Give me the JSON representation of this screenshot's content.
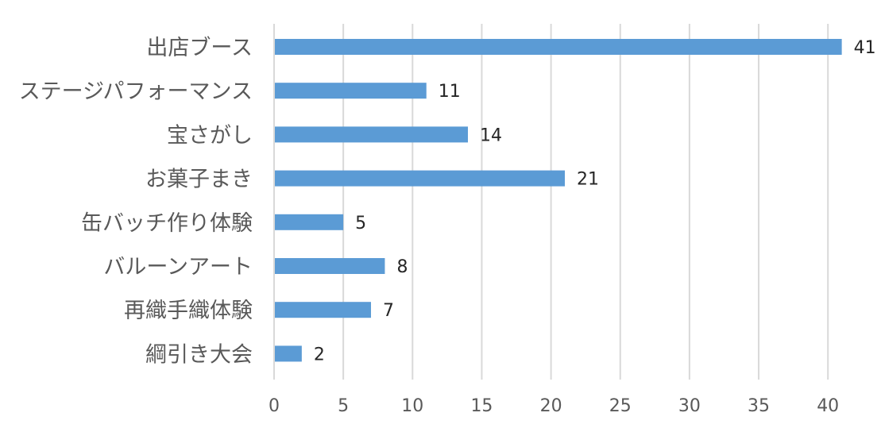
{
  "chart_data": {
    "type": "bar",
    "orientation": "horizontal",
    "categories": [
      "出店ブース",
      "ステージパフォーマンス",
      "宝さがし",
      "お菓子まき",
      "缶バッチ作り体験",
      "バルーンアート",
      "再織手織体験",
      "綱引き大会"
    ],
    "values": [
      41,
      11,
      14,
      21,
      5,
      8,
      7,
      2
    ],
    "xlim": [
      0,
      42
    ],
    "xticks": [
      0,
      5,
      10,
      15,
      20,
      25,
      30,
      35,
      40
    ],
    "grid": true,
    "data_labels": true,
    "bar_color": "#5b9bd5"
  }
}
